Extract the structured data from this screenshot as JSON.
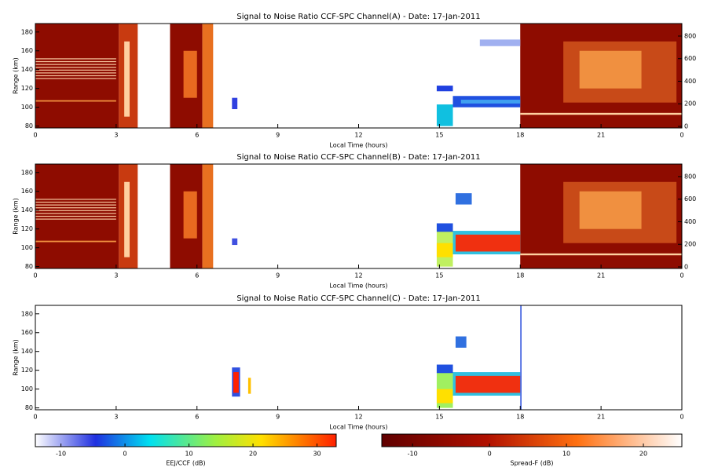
{
  "chart_data": [
    {
      "type": "heatmap",
      "title": "Signal to Noise Ratio CCF-SPC Channel(A) - Date: 17-Jan-2011",
      "xlabel": "Local Time (hours)",
      "ylabel": "Range (km)",
      "xlim": [
        0,
        24
      ],
      "xticks": [
        0,
        3,
        6,
        9,
        12,
        15,
        18,
        21,
        {
          "value": 24,
          "label": "0"
        }
      ],
      "ylim": [
        78,
        189
      ],
      "yticks": [
        80,
        100,
        120,
        140,
        160,
        180
      ],
      "y2lim": [
        -14,
        911
      ],
      "y2ticks": [
        0,
        200,
        400,
        600,
        800
      ]
    },
    {
      "type": "heatmap",
      "title": "Signal to Noise Ratio CCF-SPC Channel(B) - Date: 17-Jan-2011",
      "xlabel": "Local Time (hours)",
      "ylabel": "Range (km)",
      "xlim": [
        0,
        24
      ],
      "xticks": [
        0,
        3,
        6,
        9,
        12,
        15,
        18,
        21,
        {
          "value": 24,
          "label": "0"
        }
      ],
      "ylim": [
        78,
        189
      ],
      "yticks": [
        80,
        100,
        120,
        140,
        160,
        180
      ],
      "y2lim": [
        -14,
        911
      ],
      "y2ticks": [
        0,
        200,
        400,
        600,
        800
      ]
    },
    {
      "type": "heatmap",
      "title": "Signal to Noise Ratio CCF-SPC Channel(C) - Date: 17-Jan-2011",
      "xlabel": "Local Time (hours)",
      "ylabel": "Range (km)",
      "xlim": [
        0,
        24
      ],
      "xticks": [
        0,
        3,
        6,
        9,
        12,
        15,
        18,
        21,
        {
          "value": 24,
          "label": "0"
        }
      ],
      "ylim": [
        78,
        189
      ],
      "yticks": [
        80,
        100,
        120,
        140,
        160,
        180
      ]
    },
    {
      "type": "colorbar",
      "label": "EEJ/CCF (dB)",
      "xlim": [
        -14,
        33
      ],
      "xticks": [
        -10,
        0,
        10,
        20,
        30
      ]
    },
    {
      "type": "colorbar",
      "label": "Spread-F (dB)",
      "xlim": [
        -14,
        25
      ],
      "xticks": [
        -10,
        0,
        10,
        20
      ]
    }
  ]
}
